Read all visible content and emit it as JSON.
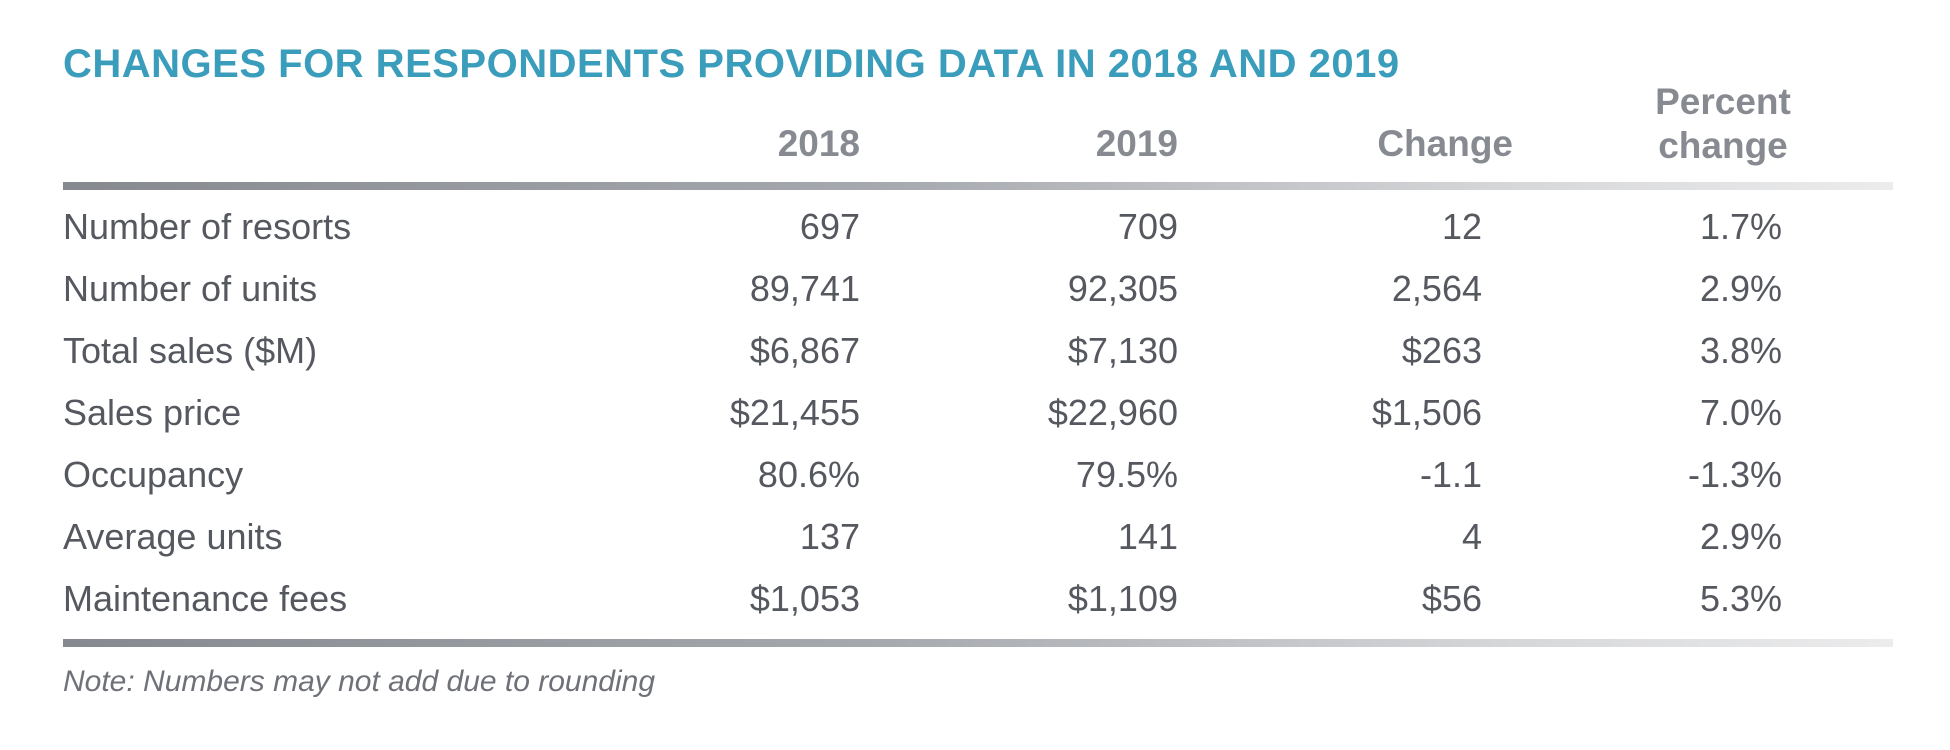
{
  "chart_data": {
    "type": "table",
    "title": "CHANGES FOR RESPONDENTS PROVIDING DATA IN 2018 AND 2019",
    "columns": [
      "",
      "2018",
      "2019",
      "Change",
      "Percent change"
    ],
    "rows": [
      {
        "label": "Number of resorts",
        "v2018": "697",
        "v2019": "709",
        "change": "12",
        "pct": "1.7%"
      },
      {
        "label": "Number of units",
        "v2018": "89,741",
        "v2019": "92,305",
        "change": "2,564",
        "pct": "2.9%"
      },
      {
        "label": "Total sales ($M)",
        "v2018": "$6,867",
        "v2019": "$7,130",
        "change": "$263",
        "pct": "3.8%"
      },
      {
        "label": "Sales price",
        "v2018": "$21,455",
        "v2019": "$22,960",
        "change": "$1,506",
        "pct": "7.0%"
      },
      {
        "label": "Occupancy",
        "v2018": "80.6%",
        "v2019": "79.5%",
        "change": "-1.1",
        "pct": "-1.3%"
      },
      {
        "label": "Average units",
        "v2018": "137",
        "v2019": "141",
        "change": "4",
        "pct": "2.9%"
      },
      {
        "label": "Maintenance fees",
        "v2018": "$1,053",
        "v2019": "$1,109",
        "change": "$56",
        "pct": "5.3%"
      }
    ],
    "note": "Note: Numbers may not add due to rounding"
  },
  "header": {
    "col_2018": "2018",
    "col_2019": "2019",
    "col_change": "Change",
    "col_percent_change": "Percent change"
  },
  "colors": {
    "title": "#3a9dbb",
    "header_text": "#878a90",
    "body_text": "#55585e",
    "rule_dark": "#86898f",
    "rule_light": "#ececed"
  }
}
